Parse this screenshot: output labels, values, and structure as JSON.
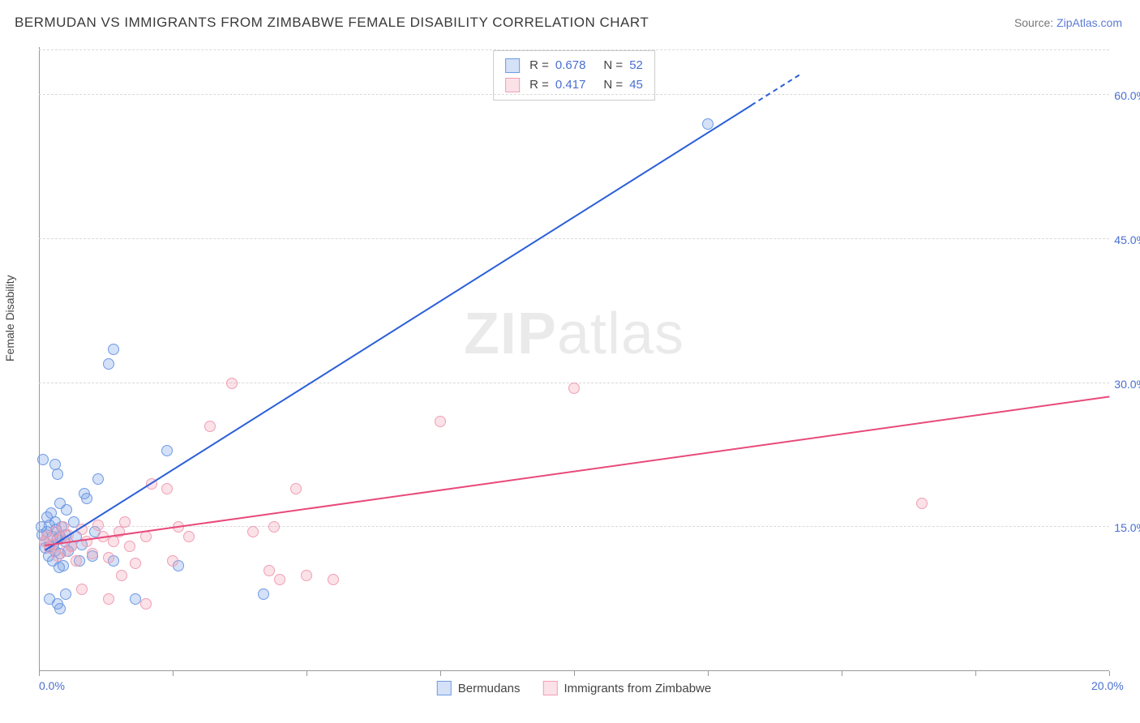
{
  "title": "BERMUDAN VS IMMIGRANTS FROM ZIMBABWE FEMALE DISABILITY CORRELATION CHART",
  "source_prefix": "Source: ",
  "source_link": "ZipAtlas.com",
  "ylabel": "Female Disability",
  "watermark_bold": "ZIP",
  "watermark_rest": "atlas",
  "chart": {
    "type": "scatter",
    "xlim": [
      0,
      20
    ],
    "ylim": [
      0,
      65
    ],
    "xtick_positions": [
      0,
      2.5,
      5,
      7.5,
      10,
      12.5,
      15,
      17.5,
      20
    ],
    "xtick_labels_shown": {
      "0": "0.0%",
      "20": "20.0%"
    },
    "ytick_positions": [
      15,
      30,
      45,
      60
    ],
    "ytick_labels": [
      "15.0%",
      "30.0%",
      "45.0%",
      "60.0%"
    ],
    "grid_color": "#d9d9d9",
    "axis_color": "#999999",
    "tick_label_color": "#4a6fd0",
    "background_color": "#ffffff",
    "marker_radius": 7,
    "marker_border_width": 1.2,
    "marker_fill_opacity": 0.3,
    "line_width": 2.5
  },
  "series": [
    {
      "name": "Bermudans",
      "label": "Bermudans",
      "color": "#6f9ae3",
      "line_color": "#2b5fd9",
      "stats": {
        "R_label": "R =",
        "R": "0.678",
        "N_label": "N =",
        "N": "52"
      },
      "trend": {
        "x1": 0.1,
        "y1": 12.5,
        "x2": 14.2,
        "y2": 62.0,
        "dash_after_x": 13.3
      },
      "points": [
        [
          0.05,
          15.0
        ],
        [
          0.06,
          14.2
        ],
        [
          0.1,
          13.5
        ],
        [
          0.12,
          12.8
        ],
        [
          0.15,
          14.5
        ],
        [
          0.15,
          16.0
        ],
        [
          0.18,
          12.0
        ],
        [
          0.2,
          15.2
        ],
        [
          0.2,
          13.0
        ],
        [
          0.22,
          16.5
        ],
        [
          0.25,
          14.0
        ],
        [
          0.25,
          11.5
        ],
        [
          0.28,
          13.2
        ],
        [
          0.3,
          12.5
        ],
        [
          0.3,
          15.5
        ],
        [
          0.32,
          14.8
        ],
        [
          0.35,
          13.8
        ],
        [
          0.38,
          10.8
        ],
        [
          0.4,
          14.0
        ],
        [
          0.4,
          12.2
        ],
        [
          0.42,
          15.0
        ],
        [
          0.45,
          11.0
        ],
        [
          0.48,
          13.5
        ],
        [
          0.5,
          8.0
        ],
        [
          0.5,
          14.2
        ],
        [
          0.52,
          16.8
        ],
        [
          0.55,
          12.5
        ],
        [
          0.3,
          21.5
        ],
        [
          0.35,
          20.5
        ],
        [
          0.08,
          22.0
        ],
        [
          0.6,
          13.0
        ],
        [
          0.65,
          15.5
        ],
        [
          0.7,
          14.0
        ],
        [
          0.75,
          11.5
        ],
        [
          0.8,
          13.2
        ],
        [
          0.85,
          18.5
        ],
        [
          0.9,
          18.0
        ],
        [
          1.0,
          12.0
        ],
        [
          1.05,
          14.5
        ],
        [
          1.1,
          20.0
        ],
        [
          0.2,
          7.5
        ],
        [
          0.35,
          7.0
        ],
        [
          0.4,
          6.5
        ],
        [
          1.8,
          7.5
        ],
        [
          1.4,
          33.5
        ],
        [
          1.3,
          32.0
        ],
        [
          2.4,
          23.0
        ],
        [
          2.6,
          11.0
        ],
        [
          4.2,
          8.0
        ],
        [
          1.4,
          11.5
        ],
        [
          0.4,
          17.5
        ],
        [
          12.5,
          57.0
        ]
      ]
    },
    {
      "name": "Immigrants from Zimbabwe",
      "label": "Immigrants from Zimbabwe",
      "color": "#f09fb4",
      "line_color": "#e84a7a",
      "stats": {
        "R_label": "R =",
        "R": "0.417",
        "N_label": "N =",
        "N": "45"
      },
      "trend": {
        "x1": 0.1,
        "y1": 13.0,
        "x2": 20.0,
        "y2": 28.5,
        "dash_after_x": null
      },
      "points": [
        [
          0.1,
          13.5
        ],
        [
          0.15,
          14.0
        ],
        [
          0.2,
          12.8
        ],
        [
          0.25,
          13.2
        ],
        [
          0.3,
          14.5
        ],
        [
          0.35,
          12.0
        ],
        [
          0.4,
          13.8
        ],
        [
          0.45,
          15.0
        ],
        [
          0.5,
          12.5
        ],
        [
          0.55,
          14.2
        ],
        [
          0.6,
          13.0
        ],
        [
          0.7,
          11.5
        ],
        [
          0.8,
          14.8
        ],
        [
          0.9,
          13.5
        ],
        [
          1.0,
          12.2
        ],
        [
          1.1,
          15.2
        ],
        [
          1.2,
          14.0
        ],
        [
          1.3,
          11.8
        ],
        [
          1.4,
          13.5
        ],
        [
          1.5,
          14.5
        ],
        [
          1.55,
          10.0
        ],
        [
          1.7,
          13.0
        ],
        [
          1.8,
          11.2
        ],
        [
          2.0,
          14.0
        ],
        [
          2.1,
          19.5
        ],
        [
          2.4,
          19.0
        ],
        [
          2.5,
          11.5
        ],
        [
          2.6,
          15.0
        ],
        [
          2.8,
          14.0
        ],
        [
          3.2,
          25.5
        ],
        [
          3.6,
          30.0
        ],
        [
          4.0,
          14.5
        ],
        [
          4.3,
          10.5
        ],
        [
          4.4,
          15.0
        ],
        [
          4.5,
          9.5
        ],
        [
          4.8,
          19.0
        ],
        [
          5.0,
          10.0
        ],
        [
          5.5,
          9.5
        ],
        [
          7.5,
          26.0
        ],
        [
          10.0,
          29.5
        ],
        [
          1.3,
          7.5
        ],
        [
          2.0,
          7.0
        ],
        [
          0.8,
          8.5
        ],
        [
          16.5,
          17.5
        ],
        [
          1.6,
          15.5
        ]
      ]
    }
  ],
  "legend_bottom": [
    {
      "swatch": 0,
      "label_path": "series.0.label"
    },
    {
      "swatch": 1,
      "label_path": "series.1.label"
    }
  ]
}
